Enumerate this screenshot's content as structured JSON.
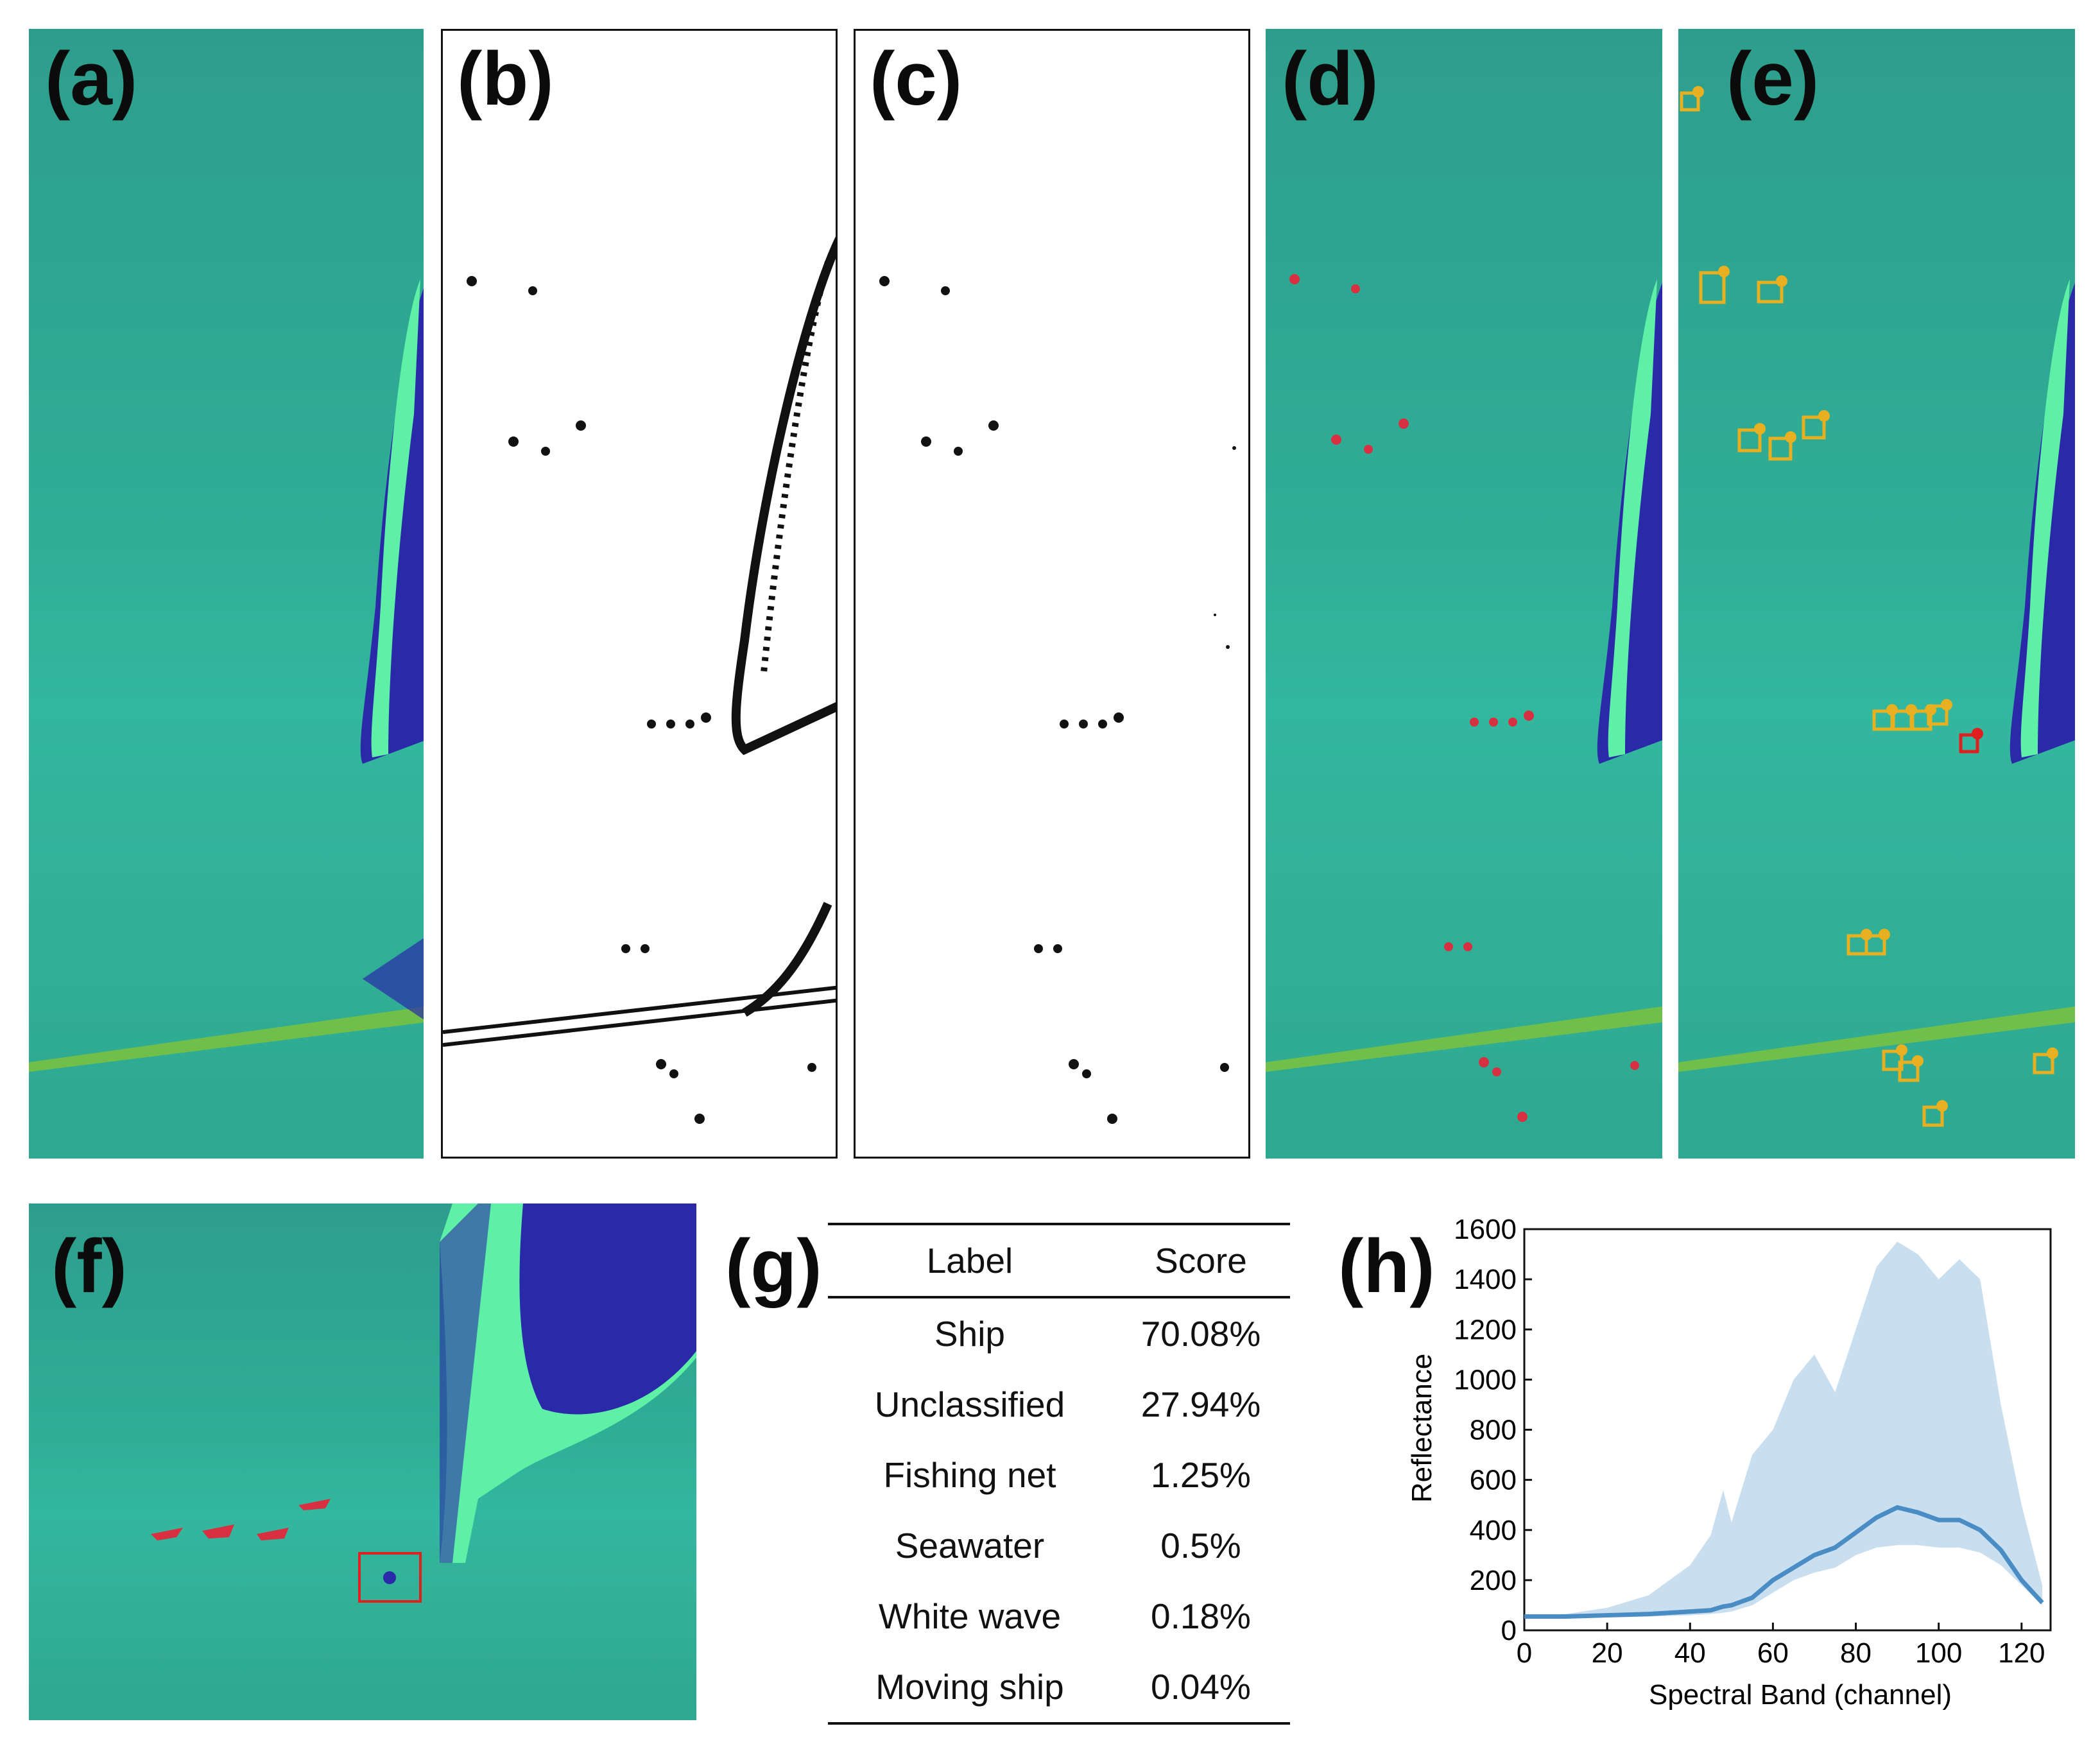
{
  "panels": {
    "a": "(a)",
    "b": "(b)",
    "c": "(c)",
    "d": "(d)",
    "e": "(e)",
    "f": "(f)",
    "g": "(g)",
    "h": "(h)"
  },
  "table": {
    "headers": [
      "Label",
      "Score"
    ],
    "rows": [
      {
        "label": "Ship",
        "score": "70.08%"
      },
      {
        "label": "Unclassified",
        "score": "27.94%"
      },
      {
        "label": "Fishing net",
        "score": "1.25%"
      },
      {
        "label": "Seawater",
        "score": "0.5%"
      },
      {
        "label": "White wave",
        "score": "0.18%"
      },
      {
        "label": "Moving ship",
        "score": "0.04%"
      }
    ]
  },
  "colors": {
    "sea": "#2fae96",
    "land_bright": "#5ff0a8",
    "land_dark": "#2a2aa8",
    "ship_red": "#d83040",
    "box_yellow": "#e8b020",
    "box_red": "#e02020",
    "band_fill": "#c9dff0",
    "mean_line": "#4a8cc4"
  },
  "chart_data": {
    "type": "area",
    "title": "",
    "xlabel": "Spectral Band (channel)",
    "ylabel": "Reflectance",
    "xlim": [
      0,
      127
    ],
    "ylim": [
      0,
      1600
    ],
    "xticks": [
      0,
      20,
      40,
      60,
      80,
      100,
      120
    ],
    "yticks": [
      0,
      200,
      400,
      600,
      800,
      1000,
      1200,
      1400,
      1600
    ],
    "series": [
      {
        "name": "mean",
        "x": [
          0,
          10,
          20,
          30,
          40,
          45,
          48,
          50,
          55,
          60,
          65,
          70,
          75,
          80,
          85,
          90,
          95,
          100,
          105,
          110,
          115,
          120,
          125
        ],
        "values": [
          55,
          55,
          60,
          65,
          75,
          80,
          95,
          100,
          130,
          200,
          250,
          300,
          330,
          390,
          450,
          490,
          470,
          440,
          440,
          400,
          320,
          200,
          110
        ]
      },
      {
        "name": "upper",
        "x": [
          0,
          10,
          20,
          30,
          40,
          45,
          48,
          50,
          55,
          60,
          65,
          70,
          75,
          80,
          85,
          90,
          95,
          100,
          105,
          110,
          115,
          120,
          125
        ],
        "values": [
          60,
          65,
          90,
          140,
          260,
          380,
          560,
          430,
          700,
          800,
          1000,
          1100,
          950,
          1200,
          1450,
          1550,
          1500,
          1400,
          1480,
          1400,
          900,
          500,
          180
        ]
      },
      {
        "name": "lower",
        "x": [
          0,
          10,
          20,
          30,
          40,
          45,
          48,
          50,
          55,
          60,
          65,
          70,
          75,
          80,
          85,
          90,
          95,
          100,
          105,
          110,
          115,
          120,
          125
        ],
        "values": [
          50,
          50,
          52,
          55,
          60,
          65,
          70,
          75,
          100,
          150,
          200,
          230,
          250,
          300,
          330,
          340,
          340,
          330,
          330,
          310,
          260,
          180,
          100
        ]
      }
    ]
  }
}
